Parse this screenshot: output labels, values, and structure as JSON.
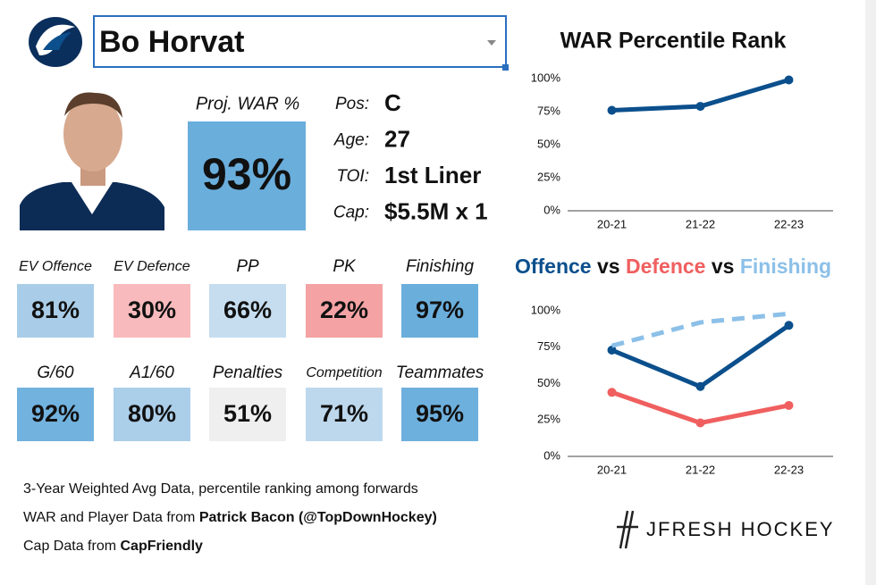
{
  "header": {
    "name": "Bo Horvat"
  },
  "projection": {
    "label": "Proj. WAR %",
    "value": "93%",
    "color": "#6aaedc"
  },
  "info": [
    {
      "label": "Pos:",
      "value": "C"
    },
    {
      "label": "Age:",
      "value": "27"
    },
    {
      "label": "TOI:",
      "value": "1st Liner"
    },
    {
      "label": "Cap:",
      "value": "$5.5M x 1"
    }
  ],
  "stats": {
    "rows": [
      {
        "tiles": [
          {
            "label": "EV Offence",
            "value": "81%",
            "color": "#a9cde8"
          },
          {
            "label": "EV Defence",
            "value": "30%",
            "color": "#f8babc"
          },
          {
            "label": "PP",
            "value": "66%",
            "color": "#c6ddef"
          },
          {
            "label": "PK",
            "value": "22%",
            "color": "#f4a2a4"
          },
          {
            "label": "Finishing",
            "value": "97%",
            "color": "#6aaedc"
          }
        ]
      },
      {
        "tiles": [
          {
            "label": "G/60",
            "value": "92%",
            "color": "#72b2de"
          },
          {
            "label": "A1/60",
            "value": "80%",
            "color": "#abcee9"
          },
          {
            "label": "Penalties",
            "value": "51%",
            "color": "#efefef"
          },
          {
            "label": "Competition",
            "value": "71%",
            "color": "#bdd8ed"
          },
          {
            "label": "Teammates",
            "value": "95%",
            "color": "#6eb0dd"
          }
        ]
      }
    ]
  },
  "footer": [
    {
      "text": "3-Year Weighted Avg Data, percentile ranking among forwards"
    },
    {
      "text": "WAR and Player Data from ",
      "bold": "Patrick Bacon (@TopDownHockey)"
    },
    {
      "text": "Cap Data from ",
      "bold": "CapFriendly"
    }
  ],
  "brand": "JFRESH HOCKEY",
  "chart_data": [
    {
      "type": "line",
      "title": "WAR Percentile Rank",
      "categories": [
        "20-21",
        "21-22",
        "22-23"
      ],
      "values": [
        76,
        79,
        99
      ],
      "color": "#0b4f8c",
      "ylim": [
        0,
        100
      ],
      "yticks": [
        {
          "value": 0,
          "label": "0%"
        },
        {
          "value": 25,
          "label": "25%"
        },
        {
          "value": 50,
          "label": "50%"
        },
        {
          "value": 75,
          "label": "75%"
        },
        {
          "value": 100,
          "label": "100%"
        }
      ],
      "grid": false
    },
    {
      "type": "line",
      "title_joiner": "vs",
      "categories": [
        "20-21",
        "21-22",
        "22-23"
      ],
      "series": [
        {
          "name": "Offence",
          "color": "#0b4f8c",
          "values": [
            73,
            48,
            90
          ],
          "dashed": false
        },
        {
          "name": "Defence",
          "color": "#f05f5f",
          "values": [
            44,
            23,
            35
          ],
          "dashed": false
        },
        {
          "name": "Finishing",
          "color": "#8cc0e8",
          "values": [
            76,
            92,
            98
          ],
          "dashed": true
        }
      ],
      "ylim": [
        0,
        100
      ],
      "yticks": [
        {
          "value": 0,
          "label": "0%"
        },
        {
          "value": 25,
          "label": "25%"
        },
        {
          "value": 50,
          "label": "50%"
        },
        {
          "value": 75,
          "label": "75%"
        },
        {
          "value": 100,
          "label": "100%"
        }
      ],
      "grid": false
    }
  ]
}
